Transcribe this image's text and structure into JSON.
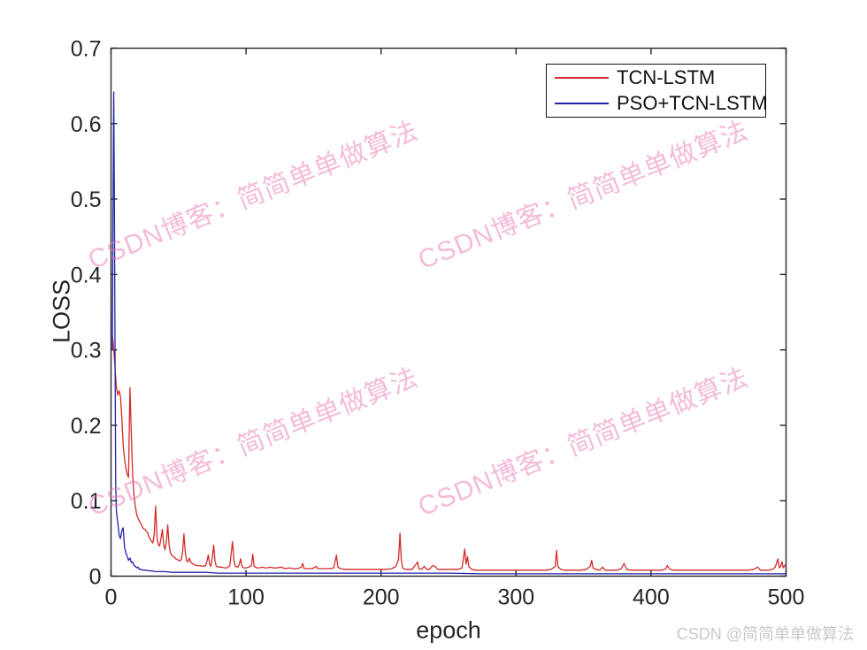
{
  "figure": {
    "background": "#ffffff",
    "axis_color": "#262626"
  },
  "chart_data": {
    "type": "line",
    "title": "",
    "xlabel": "epoch",
    "ylabel": "LOSS",
    "xlim": [
      0,
      500
    ],
    "ylim": [
      0,
      0.7
    ],
    "xticks": [
      "0",
      "100",
      "200",
      "300",
      "400",
      "500"
    ],
    "yticks": [
      "0",
      "0.1",
      "0.2",
      "0.3",
      "0.4",
      "0.5",
      "0.6",
      "0.7"
    ],
    "grid": false,
    "legend_position": "top-right",
    "series": [
      {
        "name": "TCN-LSTM",
        "color": "#d42a2a",
        "points": [
          [
            1,
            0.32
          ],
          [
            2,
            0.3
          ],
          [
            3,
            0.275
          ],
          [
            4,
            0.25
          ],
          [
            5,
            0.24
          ],
          [
            6,
            0.246
          ],
          [
            7,
            0.238
          ],
          [
            8,
            0.21
          ],
          [
            9,
            0.175
          ],
          [
            10,
            0.155
          ],
          [
            11,
            0.143
          ],
          [
            12,
            0.135
          ],
          [
            13,
            0.131
          ],
          [
            14,
            0.25
          ],
          [
            15,
            0.19
          ],
          [
            16,
            0.135
          ],
          [
            17,
            0.108
          ],
          [
            18,
            0.092
          ],
          [
            19,
            0.082
          ],
          [
            20,
            0.077
          ],
          [
            21,
            0.073
          ],
          [
            22,
            0.07
          ],
          [
            23,
            0.066
          ],
          [
            24,
            0.063
          ],
          [
            25,
            0.062
          ],
          [
            26,
            0.06
          ],
          [
            27,
            0.058
          ],
          [
            28,
            0.053
          ],
          [
            29,
            0.049
          ],
          [
            30,
            0.046
          ],
          [
            31,
            0.044
          ],
          [
            32,
            0.055
          ],
          [
            33,
            0.093
          ],
          [
            34,
            0.052
          ],
          [
            35,
            0.042
          ],
          [
            36,
            0.04
          ],
          [
            37,
            0.05
          ],
          [
            38,
            0.062
          ],
          [
            39,
            0.042
          ],
          [
            40,
            0.035
          ],
          [
            41,
            0.046
          ],
          [
            42,
            0.068
          ],
          [
            43,
            0.042
          ],
          [
            44,
            0.031
          ],
          [
            45,
            0.028
          ],
          [
            46,
            0.026
          ],
          [
            47,
            0.025
          ],
          [
            48,
            0.023
          ],
          [
            49,
            0.022
          ],
          [
            50,
            0.021
          ],
          [
            51,
            0.02
          ],
          [
            52,
            0.022
          ],
          [
            53,
            0.032
          ],
          [
            54,
            0.056
          ],
          [
            55,
            0.032
          ],
          [
            56,
            0.02
          ],
          [
            57,
            0.019
          ],
          [
            58,
            0.024
          ],
          [
            59,
            0.019
          ],
          [
            60,
            0.017
          ],
          [
            62,
            0.015
          ],
          [
            64,
            0.014
          ],
          [
            66,
            0.014
          ],
          [
            68,
            0.013
          ],
          [
            70,
            0.014
          ],
          [
            71,
            0.019
          ],
          [
            72,
            0.028
          ],
          [
            73,
            0.016
          ],
          [
            74,
            0.013
          ],
          [
            75,
            0.024
          ],
          [
            76,
            0.041
          ],
          [
            77,
            0.02
          ],
          [
            78,
            0.013
          ],
          [
            80,
            0.012
          ],
          [
            82,
            0.012
          ],
          [
            84,
            0.011
          ],
          [
            86,
            0.011
          ],
          [
            88,
            0.014
          ],
          [
            90,
            0.046
          ],
          [
            91,
            0.022
          ],
          [
            92,
            0.013
          ],
          [
            94,
            0.012
          ],
          [
            95,
            0.016
          ],
          [
            96,
            0.023
          ],
          [
            97,
            0.013
          ],
          [
            98,
            0.011
          ],
          [
            100,
            0.011
          ],
          [
            102,
            0.012
          ],
          [
            104,
            0.014
          ],
          [
            105,
            0.029
          ],
          [
            106,
            0.013
          ],
          [
            108,
            0.011
          ],
          [
            110,
            0.011
          ],
          [
            112,
            0.012
          ],
          [
            114,
            0.011
          ],
          [
            116,
            0.011
          ],
          [
            118,
            0.012
          ],
          [
            120,
            0.011
          ],
          [
            123,
            0.011
          ],
          [
            126,
            0.012
          ],
          [
            129,
            0.01
          ],
          [
            132,
            0.011
          ],
          [
            135,
            0.01
          ],
          [
            138,
            0.01
          ],
          [
            141,
            0.012
          ],
          [
            142,
            0.017
          ],
          [
            143,
            0.01
          ],
          [
            146,
            0.01
          ],
          [
            149,
            0.01
          ],
          [
            152,
            0.013
          ],
          [
            153,
            0.01
          ],
          [
            156,
            0.01
          ],
          [
            159,
            0.01
          ],
          [
            162,
            0.01
          ],
          [
            165,
            0.011
          ],
          [
            167,
            0.028
          ],
          [
            168,
            0.012
          ],
          [
            170,
            0.01
          ],
          [
            173,
            0.009
          ],
          [
            176,
            0.009
          ],
          [
            180,
            0.009
          ],
          [
            184,
            0.009
          ],
          [
            188,
            0.009
          ],
          [
            192,
            0.009
          ],
          [
            196,
            0.009
          ],
          [
            200,
            0.009
          ],
          [
            204,
            0.009
          ],
          [
            208,
            0.01
          ],
          [
            211,
            0.013
          ],
          [
            213,
            0.022
          ],
          [
            214,
            0.057
          ],
          [
            215,
            0.022
          ],
          [
            216,
            0.011
          ],
          [
            218,
            0.009
          ],
          [
            220,
            0.009
          ],
          [
            223,
            0.009
          ],
          [
            226,
            0.016
          ],
          [
            227,
            0.019
          ],
          [
            228,
            0.01
          ],
          [
            230,
            0.009
          ],
          [
            232,
            0.013
          ],
          [
            234,
            0.009
          ],
          [
            236,
            0.009
          ],
          [
            238,
            0.014
          ],
          [
            240,
            0.013
          ],
          [
            242,
            0.009
          ],
          [
            245,
            0.009
          ],
          [
            248,
            0.009
          ],
          [
            251,
            0.009
          ],
          [
            254,
            0.009
          ],
          [
            257,
            0.009
          ],
          [
            260,
            0.011
          ],
          [
            262,
            0.036
          ],
          [
            263,
            0.016
          ],
          [
            264,
            0.026
          ],
          [
            265,
            0.013
          ],
          [
            267,
            0.009
          ],
          [
            270,
            0.008
          ],
          [
            274,
            0.008
          ],
          [
            278,
            0.008
          ],
          [
            282,
            0.008
          ],
          [
            286,
            0.008
          ],
          [
            290,
            0.008
          ],
          [
            294,
            0.008
          ],
          [
            298,
            0.008
          ],
          [
            302,
            0.008
          ],
          [
            306,
            0.008
          ],
          [
            310,
            0.008
          ],
          [
            314,
            0.008
          ],
          [
            318,
            0.008
          ],
          [
            322,
            0.008
          ],
          [
            326,
            0.009
          ],
          [
            329,
            0.013
          ],
          [
            330,
            0.034
          ],
          [
            331,
            0.013
          ],
          [
            333,
            0.009
          ],
          [
            336,
            0.008
          ],
          [
            340,
            0.008
          ],
          [
            344,
            0.008
          ],
          [
            348,
            0.008
          ],
          [
            352,
            0.009
          ],
          [
            355,
            0.013
          ],
          [
            356,
            0.021
          ],
          [
            357,
            0.011
          ],
          [
            359,
            0.009
          ],
          [
            362,
            0.008
          ],
          [
            364,
            0.012
          ],
          [
            366,
            0.008
          ],
          [
            369,
            0.008
          ],
          [
            372,
            0.008
          ],
          [
            375,
            0.008
          ],
          [
            378,
            0.01
          ],
          [
            380,
            0.017
          ],
          [
            382,
            0.009
          ],
          [
            385,
            0.008
          ],
          [
            388,
            0.008
          ],
          [
            392,
            0.008
          ],
          [
            396,
            0.008
          ],
          [
            400,
            0.008
          ],
          [
            404,
            0.008
          ],
          [
            408,
            0.008
          ],
          [
            411,
            0.01
          ],
          [
            412,
            0.014
          ],
          [
            414,
            0.009
          ],
          [
            417,
            0.008
          ],
          [
            420,
            0.008
          ],
          [
            424,
            0.008
          ],
          [
            428,
            0.008
          ],
          [
            432,
            0.008
          ],
          [
            436,
            0.008
          ],
          [
            440,
            0.008
          ],
          [
            444,
            0.008
          ],
          [
            448,
            0.008
          ],
          [
            452,
            0.008
          ],
          [
            456,
            0.008
          ],
          [
            460,
            0.008
          ],
          [
            464,
            0.008
          ],
          [
            468,
            0.008
          ],
          [
            472,
            0.008
          ],
          [
            476,
            0.009
          ],
          [
            479,
            0.012
          ],
          [
            481,
            0.008
          ],
          [
            484,
            0.008
          ],
          [
            487,
            0.008
          ],
          [
            490,
            0.009
          ],
          [
            492,
            0.012
          ],
          [
            494,
            0.023
          ],
          [
            495,
            0.011
          ],
          [
            496,
            0.013
          ],
          [
            497,
            0.019
          ],
          [
            498,
            0.011
          ],
          [
            499,
            0.014
          ],
          [
            500,
            0.016
          ]
        ]
      },
      {
        "name": "PSO+TCN-LSTM",
        "color": "#2222aa",
        "points": [
          [
            1,
            0.3
          ],
          [
            1.5,
            0.5
          ],
          [
            2,
            0.642
          ],
          [
            2.5,
            0.5
          ],
          [
            3,
            0.28
          ],
          [
            3.5,
            0.12
          ],
          [
            4,
            0.085
          ],
          [
            5,
            0.071
          ],
          [
            6,
            0.054
          ],
          [
            7,
            0.05
          ],
          [
            8,
            0.06
          ],
          [
            9,
            0.064
          ],
          [
            10,
            0.038
          ],
          [
            11,
            0.031
          ],
          [
            12,
            0.026
          ],
          [
            13,
            0.021
          ],
          [
            14,
            0.024
          ],
          [
            15,
            0.018
          ],
          [
            16,
            0.019
          ],
          [
            17,
            0.014
          ],
          [
            18,
            0.013
          ],
          [
            19,
            0.011
          ],
          [
            20,
            0.012
          ],
          [
            21,
            0.009
          ],
          [
            22,
            0.009
          ],
          [
            24,
            0.008
          ],
          [
            26,
            0.008
          ],
          [
            28,
            0.007
          ],
          [
            30,
            0.007
          ],
          [
            33,
            0.006
          ],
          [
            36,
            0.006
          ],
          [
            40,
            0.006
          ],
          [
            45,
            0.005
          ],
          [
            50,
            0.005
          ],
          [
            55,
            0.005
          ],
          [
            60,
            0.005
          ],
          [
            70,
            0.005
          ],
          [
            80,
            0.004
          ],
          [
            90,
            0.004
          ],
          [
            100,
            0.004
          ],
          [
            115,
            0.004
          ],
          [
            130,
            0.004
          ],
          [
            145,
            0.004
          ],
          [
            160,
            0.004
          ],
          [
            180,
            0.004
          ],
          [
            200,
            0.004
          ],
          [
            225,
            0.004
          ],
          [
            250,
            0.004
          ],
          [
            275,
            0.003
          ],
          [
            300,
            0.003
          ],
          [
            325,
            0.003
          ],
          [
            350,
            0.003
          ],
          [
            375,
            0.003
          ],
          [
            400,
            0.003
          ],
          [
            425,
            0.003
          ],
          [
            450,
            0.003
          ],
          [
            475,
            0.003
          ],
          [
            500,
            0.003
          ]
        ]
      }
    ]
  },
  "watermarks": {
    "diagonal_text": "CSDN博客：简简单单做算法",
    "diagonal_color": "#e87ab4",
    "corner_text": "CSDN @简简单单做算法",
    "corner_color": "#c9c9c9"
  }
}
